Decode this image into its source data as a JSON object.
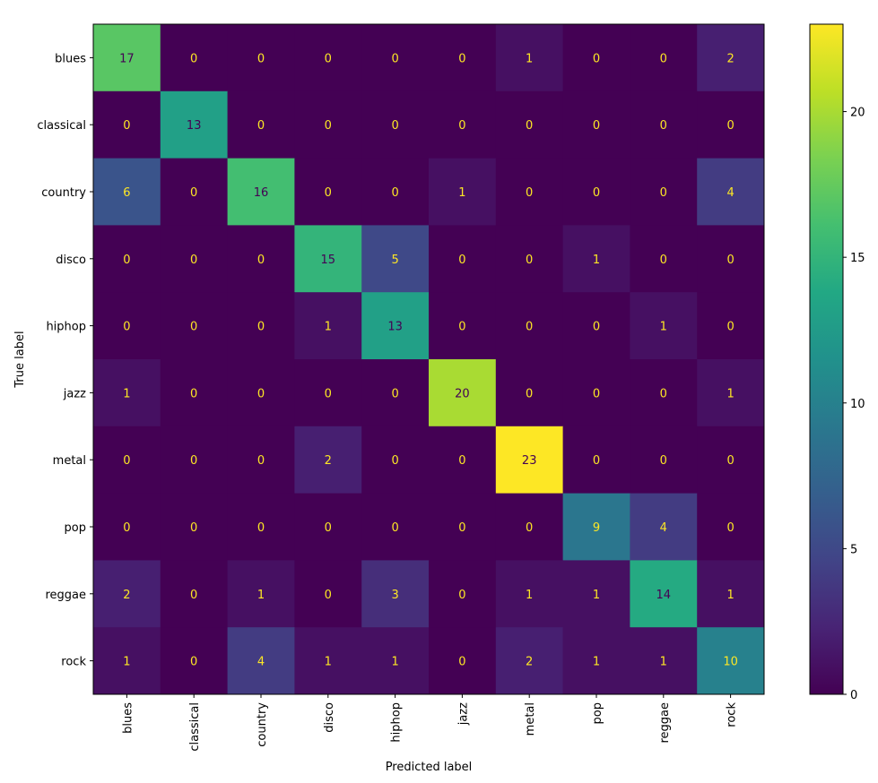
{
  "chart_data": {
    "type": "heatmap",
    "title": "",
    "xlabel": "Predicted label",
    "ylabel": "True label",
    "x_categories": [
      "blues",
      "classical",
      "country",
      "disco",
      "hiphop",
      "jazz",
      "metal",
      "pop",
      "reggae",
      "rock"
    ],
    "y_categories": [
      "blues",
      "classical",
      "country",
      "disco",
      "hiphop",
      "jazz",
      "metal",
      "pop",
      "reggae",
      "rock"
    ],
    "values": [
      [
        17,
        0,
        0,
        0,
        0,
        0,
        1,
        0,
        0,
        2
      ],
      [
        0,
        13,
        0,
        0,
        0,
        0,
        0,
        0,
        0,
        0
      ],
      [
        6,
        0,
        16,
        0,
        0,
        1,
        0,
        0,
        0,
        4
      ],
      [
        0,
        0,
        0,
        15,
        5,
        0,
        0,
        1,
        0,
        0
      ],
      [
        0,
        0,
        0,
        1,
        13,
        0,
        0,
        0,
        1,
        0
      ],
      [
        1,
        0,
        0,
        0,
        0,
        20,
        0,
        0,
        0,
        1
      ],
      [
        0,
        0,
        0,
        2,
        0,
        0,
        23,
        0,
        0,
        0
      ],
      [
        0,
        0,
        0,
        0,
        0,
        0,
        0,
        9,
        4,
        0
      ],
      [
        2,
        0,
        1,
        0,
        3,
        0,
        1,
        1,
        14,
        1
      ],
      [
        1,
        0,
        4,
        1,
        1,
        0,
        2,
        1,
        1,
        10
      ]
    ],
    "colormap": "viridis",
    "colorbar": {
      "range": [
        0,
        23
      ],
      "ticks": [
        0,
        5,
        10,
        15,
        20
      ]
    },
    "text_colors": {
      "low": "#fde725",
      "high": "#440154"
    },
    "grid": false
  }
}
